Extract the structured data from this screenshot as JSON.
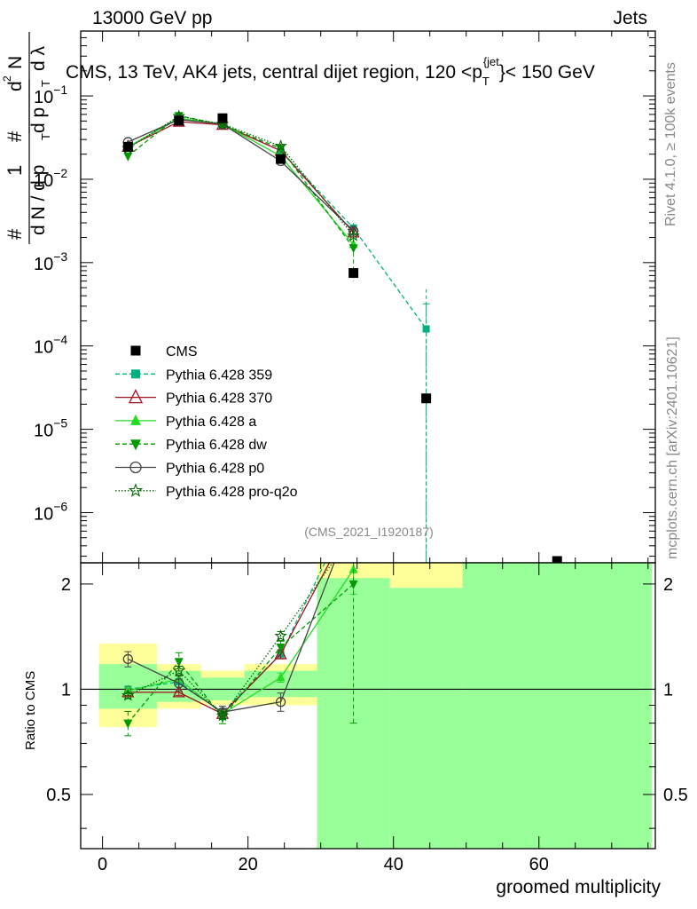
{
  "header": {
    "left": "13000 GeV pp",
    "right": "Jets"
  },
  "side_labels": {
    "rivet": "Rivet 4.1.0, ≥ 100k events",
    "mcplots": "mcplots.cern.ch [arXiv:2401.10621]"
  },
  "chart_data": {
    "type": "scatter",
    "title": "CMS, 13 TeV, AK4 jets, central dijet region, 120 <p_T^{jet}< 150 GeV",
    "title_parts": {
      "main": "CMS, 13 TeV, AK4 jets, central dijet region, 120 <p",
      "sub": "T",
      "sup": "{jet",
      "close": "}< 150 GeV"
    },
    "analysis_tag": "(CMS_2021_I1920187)",
    "ylabel_parts": {
      "one": "1",
      "dN": "d N / d p",
      "T": "T",
      "hash": "#",
      "num": "d",
      "two": "2",
      "N": "N",
      "den": "d p",
      "lam": "d λ"
    },
    "xlabel": "groomed multiplicity",
    "ratio_ylabel": "Ratio to CMS",
    "xlim": [
      -3,
      76
    ],
    "ylim_main": [
      2.5e-07,
      0.6
    ],
    "ylim_ratio": [
      0.35,
      2.3
    ],
    "x_ticks": [
      0,
      20,
      40,
      60
    ],
    "y_ticks_main": [
      {
        "value": 1e-06,
        "label": "10",
        "exp": "−6"
      },
      {
        "value": 1e-05,
        "label": "10",
        "exp": "−5"
      },
      {
        "value": 0.0001,
        "label": "10",
        "exp": "−4"
      },
      {
        "value": 0.001,
        "label": "10",
        "exp": "−3"
      },
      {
        "value": 0.01,
        "label": "10",
        "exp": "−2"
      },
      {
        "value": 0.1,
        "label": "10",
        "exp": "−1"
      }
    ],
    "y_ticks_ratio": [
      {
        "value": 0.5,
        "label": "0.5"
      },
      {
        "value": 1,
        "label": "1"
      },
      {
        "value": 2,
        "label": "2"
      }
    ],
    "bins": [
      {
        "lo": -0.5,
        "hi": 7.5
      },
      {
        "lo": 7.5,
        "hi": 13.5
      },
      {
        "lo": 13.5,
        "hi": 19.5
      },
      {
        "lo": 19.5,
        "hi": 29.5
      },
      {
        "lo": 29.5,
        "hi": 39.5
      },
      {
        "lo": 39.5,
        "hi": 49.5
      },
      {
        "lo": 49.5,
        "hi": 75.5
      }
    ],
    "x": [
      3.5,
      10.5,
      16.5,
      24.5,
      34.5,
      44.5,
      62.5
    ],
    "data": {
      "name": "CMS",
      "values": [
        0.0245,
        0.0505,
        0.054,
        0.0175,
        0.00075,
        2.35e-05,
        1.8e-07
      ],
      "band_yellow": [
        [
          0.78,
          1.35
        ],
        [
          0.88,
          1.18
        ],
        [
          0.9,
          1.13
        ],
        [
          0.9,
          1.18
        ],
        [
          0.35,
          2.3
        ],
        [
          1.95,
          2.3
        ],
        [
          0.35,
          2.3
        ]
      ],
      "band_green": [
        [
          0.88,
          1.18
        ],
        [
          0.92,
          1.13
        ],
        [
          0.93,
          1.08
        ],
        [
          0.95,
          1.13
        ],
        [
          0.35,
          2.08
        ],
        [
          0.35,
          1.95
        ],
        [
          0.35,
          2.3
        ]
      ]
    },
    "series": [
      {
        "name": "Pythia 6.428 359",
        "color": "#00b080",
        "marker": "square",
        "dash": "5,3",
        "values": [
          0.0245,
          0.053,
          0.046,
          0.022,
          0.0026,
          0.00016
        ],
        "ratio": [
          1.0,
          1.05,
          0.86,
          1.26,
          3.4,
          6.8
        ],
        "errors": [
          0.02,
          0.02,
          0.02,
          0.03,
          0.15,
          1.0
        ]
      },
      {
        "name": "Pythia 6.428 370",
        "color": "#a01020",
        "marker": "triangle-open",
        "dash": "",
        "values": [
          0.0245,
          0.049,
          0.045,
          0.022,
          0.0023
        ],
        "ratio": [
          0.98,
          0.98,
          0.85,
          1.26,
          3.1
        ],
        "errors": [
          0.02,
          0.02,
          0.02,
          0.03,
          0.15
        ]
      },
      {
        "name": "Pythia 6.428 a",
        "color": "#22dd22",
        "marker": "triangle",
        "dash": "",
        "values": [
          0.0245,
          0.054,
          0.046,
          0.019,
          0.00165
        ],
        "ratio": [
          0.99,
          1.07,
          0.85,
          1.08,
          2.2
        ],
        "errors": [
          0.02,
          0.02,
          0.02,
          0.03,
          0.15
        ]
      },
      {
        "name": "Pythia 6.428 dw",
        "color": "#009900",
        "marker": "triangle-down",
        "dash": "5,3",
        "values": [
          0.019,
          0.058,
          0.045,
          0.0235,
          0.0015
        ],
        "ratio": [
          0.8,
          1.2,
          0.83,
          1.32,
          2.0
        ],
        "errors": [
          0.08,
          0.06,
          0.04,
          0.04,
          0.6
        ]
      },
      {
        "name": "Pythia 6.428 p0",
        "color": "#444444",
        "marker": "circle-open",
        "dash": "",
        "values": [
          0.028,
          0.052,
          0.046,
          0.0165,
          0.0024
        ],
        "ratio": [
          1.22,
          1.04,
          0.86,
          0.92,
          3.2
        ],
        "errors": [
          0.05,
          0.05,
          0.04,
          0.06,
          0.15
        ]
      },
      {
        "name": "Pythia 6.428 pro-q2o",
        "color": "#006600",
        "marker": "star",
        "dash": "1.5,2",
        "values": [
          0.0235,
          0.057,
          0.046,
          0.025,
          0.0021
        ],
        "ratio": [
          0.96,
          1.13,
          0.84,
          1.42,
          2.8
        ],
        "errors": [
          0.02,
          0.03,
          0.02,
          0.03,
          0.15
        ]
      }
    ]
  }
}
